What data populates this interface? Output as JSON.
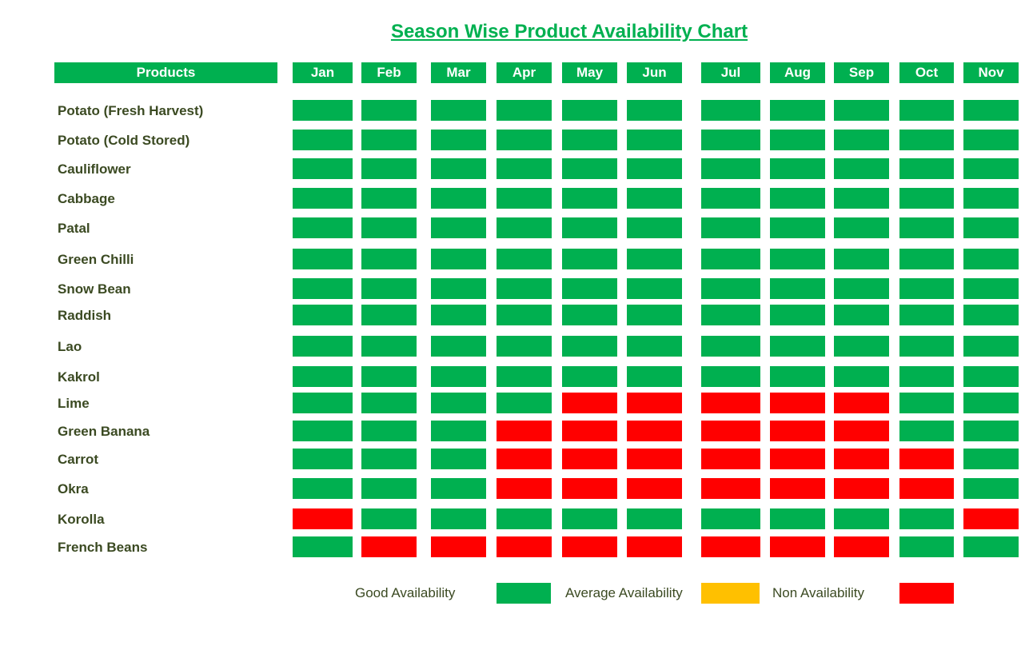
{
  "chart_data": {
    "type": "heatmap",
    "title": "Season Wise Product Availability Chart",
    "row_header": "Products",
    "columns": [
      "Jan",
      "Feb",
      "Mar",
      "Apr",
      "May",
      "Jun",
      "Jul",
      "Aug",
      "Sep",
      "Oct",
      "Nov"
    ],
    "rows": [
      {
        "product": "Potato (Fresh Harvest)",
        "values": [
          "good",
          "good",
          "good",
          "good",
          "good",
          "good",
          "good",
          "good",
          "good",
          "good",
          "good"
        ]
      },
      {
        "product": "Potato (Cold Stored)",
        "values": [
          "good",
          "good",
          "good",
          "good",
          "good",
          "good",
          "good",
          "good",
          "good",
          "good",
          "good"
        ]
      },
      {
        "product": "Cauliflower",
        "values": [
          "good",
          "good",
          "good",
          "good",
          "good",
          "good",
          "good",
          "good",
          "good",
          "good",
          "good"
        ]
      },
      {
        "product": "Cabbage",
        "values": [
          "good",
          "good",
          "good",
          "good",
          "good",
          "good",
          "good",
          "good",
          "good",
          "good",
          "good"
        ]
      },
      {
        "product": "Patal",
        "values": [
          "good",
          "good",
          "good",
          "good",
          "good",
          "good",
          "good",
          "good",
          "good",
          "good",
          "good"
        ]
      },
      {
        "product": "Green Chilli",
        "values": [
          "good",
          "good",
          "good",
          "good",
          "good",
          "good",
          "good",
          "good",
          "good",
          "good",
          "good"
        ]
      },
      {
        "product": "Snow Bean",
        "values": [
          "good",
          "good",
          "good",
          "good",
          "good",
          "good",
          "good",
          "good",
          "good",
          "good",
          "good"
        ]
      },
      {
        "product": "Raddish",
        "values": [
          "good",
          "good",
          "good",
          "good",
          "good",
          "good",
          "good",
          "good",
          "good",
          "good",
          "good"
        ]
      },
      {
        "product": "Lao",
        "values": [
          "good",
          "good",
          "good",
          "good",
          "good",
          "good",
          "good",
          "good",
          "good",
          "good",
          "good"
        ]
      },
      {
        "product": "Kakrol",
        "values": [
          "good",
          "good",
          "good",
          "good",
          "good",
          "good",
          "good",
          "good",
          "good",
          "good",
          "good"
        ]
      },
      {
        "product": "Lime",
        "values": [
          "good",
          "good",
          "good",
          "good",
          "non",
          "non",
          "non",
          "non",
          "non",
          "good",
          "good"
        ]
      },
      {
        "product": "Green Banana",
        "values": [
          "good",
          "good",
          "good",
          "non",
          "non",
          "non",
          "non",
          "non",
          "non",
          "good",
          "good"
        ]
      },
      {
        "product": "Carrot",
        "values": [
          "good",
          "good",
          "good",
          "non",
          "non",
          "non",
          "non",
          "non",
          "non",
          "non",
          "good"
        ]
      },
      {
        "product": "Okra",
        "values": [
          "good",
          "good",
          "good",
          "non",
          "non",
          "non",
          "non",
          "non",
          "non",
          "non",
          "good"
        ]
      },
      {
        "product": "Korolla",
        "values": [
          "non",
          "good",
          "good",
          "good",
          "good",
          "good",
          "good",
          "good",
          "good",
          "good",
          "non"
        ]
      },
      {
        "product": "French Beans",
        "values": [
          "good",
          "non",
          "non",
          "non",
          "non",
          "non",
          "non",
          "non",
          "non",
          "good",
          "good"
        ]
      }
    ],
    "legend": [
      {
        "key": "good",
        "label": "Good Availability",
        "color": "#00b050"
      },
      {
        "key": "average",
        "label": "Average Availability",
        "color": "#ffc000"
      },
      {
        "key": "non",
        "label": "Non Availability",
        "color": "#ff0000"
      }
    ]
  }
}
